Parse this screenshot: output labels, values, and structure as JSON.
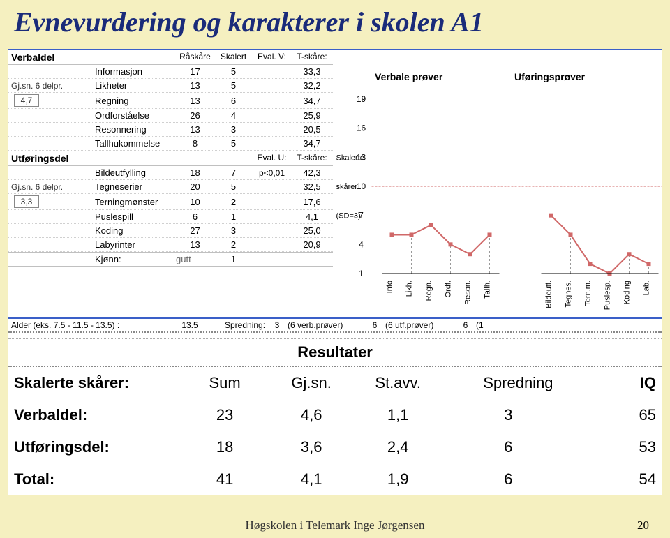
{
  "title": "Evnevurdering og karakterer i skolen A1",
  "footer": "Høgskolen i Telemark Inge Jørgensen",
  "page_number": "20",
  "colors": {
    "bg": "#f5f0c0",
    "title": "#1a2b7a",
    "rule": "#3a5fc8",
    "bar": "#d06868",
    "gridline": "#bbbbbb",
    "dashed": "#999999"
  },
  "verbal": {
    "header_name": "Verbaldel",
    "cols": [
      "Råskåre",
      "Skalert",
      "Eval. V:",
      "T-skåre:"
    ],
    "avg_label": "Gj.sn. 6 delpr.",
    "avg_value": "4,7",
    "rows": [
      {
        "name": "Informasjon",
        "raw": "17",
        "scaled": "5",
        "eval": "",
        "t": "33,3"
      },
      {
        "name": "Likheter",
        "raw": "13",
        "scaled": "5",
        "eval": "",
        "t": "32,2"
      },
      {
        "name": "Regning",
        "raw": "13",
        "scaled": "6",
        "eval": "",
        "t": "34,7"
      },
      {
        "name": "Ordforståelse",
        "raw": "26",
        "scaled": "4",
        "eval": "",
        "t": "25,9"
      },
      {
        "name": "Resonnering",
        "raw": "13",
        "scaled": "3",
        "eval": "",
        "t": "20,5"
      },
      {
        "name": "Tallhukommelse",
        "raw": "8",
        "scaled": "5",
        "eval": "",
        "t": "34,7"
      }
    ]
  },
  "perf": {
    "header_name": "Utføringsdel",
    "cols": [
      "",
      "",
      "Eval. U:",
      "T-skåre:"
    ],
    "avg_label": "Gj.sn. 6 delpr.",
    "avg_value": "3,3",
    "rows": [
      {
        "name": "Bildeutfylling",
        "raw": "18",
        "scaled": "7",
        "eval": "p<0,01",
        "t": "42,3"
      },
      {
        "name": "Tegneserier",
        "raw": "20",
        "scaled": "5",
        "eval": "",
        "t": "32,5"
      },
      {
        "name": "Terningmønster",
        "raw": "10",
        "scaled": "2",
        "eval": "",
        "t": "17,6"
      },
      {
        "name": "Puslespill",
        "raw": "6",
        "scaled": "1",
        "eval": "",
        "t": "4,1"
      },
      {
        "name": "Koding",
        "raw": "27",
        "scaled": "3",
        "eval": "",
        "t": "25,0"
      },
      {
        "name": "Labyrinter",
        "raw": "13",
        "scaled": "2",
        "eval": "",
        "t": "20,9"
      }
    ]
  },
  "gender_row": {
    "label": "Kjønn:",
    "value_text": "gutt",
    "value_num": "1"
  },
  "age_row": {
    "label": "Alder (eks. 7.5 - 11.5 - 13.5) :",
    "value": "13.5",
    "spread_label": "Spredning:",
    "v1": "3",
    "v1_lbl": "(6 verb.prøver)",
    "v2": "6",
    "v2_lbl": "(6 utf.prøver)",
    "v3": "6",
    "v3_lbl": "(1"
  },
  "chart": {
    "left_title": "Verbale prøver",
    "right_title": "Uføringsprøver",
    "y_left_label_top": "Skalerte",
    "y_left_label_mid": "skårer",
    "y_left_label_bot": "(SD=3)",
    "y_ticks": [
      19,
      16,
      13,
      10,
      7,
      4,
      1
    ],
    "x_labels_left": [
      "Info",
      "Likh.",
      "Regn.",
      "Ordf.",
      "Reson.",
      "Tallh."
    ],
    "x_labels_right": [
      "Bildeutf.",
      "Tegnes.",
      "Tern.m.",
      "Puslesp.",
      "Koding",
      "Lab."
    ],
    "values_left": [
      5,
      5,
      6,
      4,
      3,
      5
    ],
    "values_right": [
      7,
      5,
      2,
      1,
      3,
      2
    ],
    "ymin": 1,
    "ymax": 19,
    "mid": 10
  },
  "results": {
    "title": "Resultater",
    "header": [
      "Skalerte skårer:",
      "Sum",
      "Gj.sn.",
      "St.avv.",
      "Spredning",
      "IQ"
    ],
    "rows": [
      {
        "label": "Verbaldel:",
        "sum": "23",
        "mean": "4,6",
        "sd": "1,1",
        "spread": "3",
        "iq": "65"
      },
      {
        "label": "Utføringsdel:",
        "sum": "18",
        "mean": "3,6",
        "sd": "2,4",
        "spread": "6",
        "iq": "53"
      },
      {
        "label": "Total:",
        "sum": "41",
        "mean": "4,1",
        "sd": "1,9",
        "spread": "6",
        "iq": "54"
      }
    ]
  }
}
